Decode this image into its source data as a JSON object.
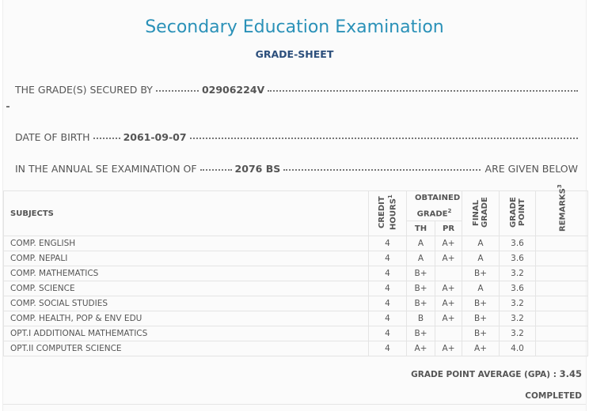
{
  "header": {
    "title": "Secondary Education Examination",
    "subtitle": "GRADE-SHEET"
  },
  "info": {
    "secured_label": "THE GRADE(S) SECURED BY",
    "symbol_no": "02906224V",
    "dob_label": "DATE OF BIRTH",
    "dob": "2061-09-07",
    "exam_label": "IN THE ANNUAL SE EXAMINATION OF",
    "exam_year": "2076 BS",
    "given": "ARE GIVEN BELOW"
  },
  "table": {
    "headers": {
      "subjects": "SUBJECTS",
      "credit": "CREDIT HOURS",
      "credit_note": "1",
      "obtained": "OBTAINED GRADE",
      "obtained_note": "2",
      "th": "TH",
      "pr": "PR",
      "final": "FINAL GRADE",
      "point": "GRADE POINT",
      "remarks": "REMARKS",
      "remarks_note": "3"
    },
    "rows": [
      [
        "COMP. ENGLISH",
        "4",
        "A",
        "A+",
        "A",
        "3.6"
      ],
      [
        "COMP. NEPALI",
        "4",
        "A",
        "A+",
        "A",
        "3.6"
      ],
      [
        "COMP. MATHEMATICS",
        "4",
        "B+",
        null,
        "B+",
        "3.2"
      ],
      [
        "COMP. SCIENCE",
        "4",
        "B+",
        "A+",
        "A",
        "3.6"
      ],
      [
        "COMP. SOCIAL STUDIES",
        "4",
        "B+",
        "A+",
        "B+",
        "3.2"
      ],
      [
        "COMP. HEALTH, POP & ENV EDU",
        "4",
        "B",
        "A+",
        "B+",
        "3.2"
      ],
      [
        "OPT.I ADDITIONAL MATHEMATICS",
        "4",
        "B+",
        null,
        "B+",
        "3.2"
      ],
      [
        "OPT.II COMPUTER SCIENCE",
        "4",
        "A+",
        "A+",
        "A+",
        "4.0"
      ]
    ]
  },
  "footer": {
    "gpa_label": "GRADE POINT AVERAGE (GPA) :",
    "gpa": "3.45",
    "status": "COMPLETED"
  }
}
